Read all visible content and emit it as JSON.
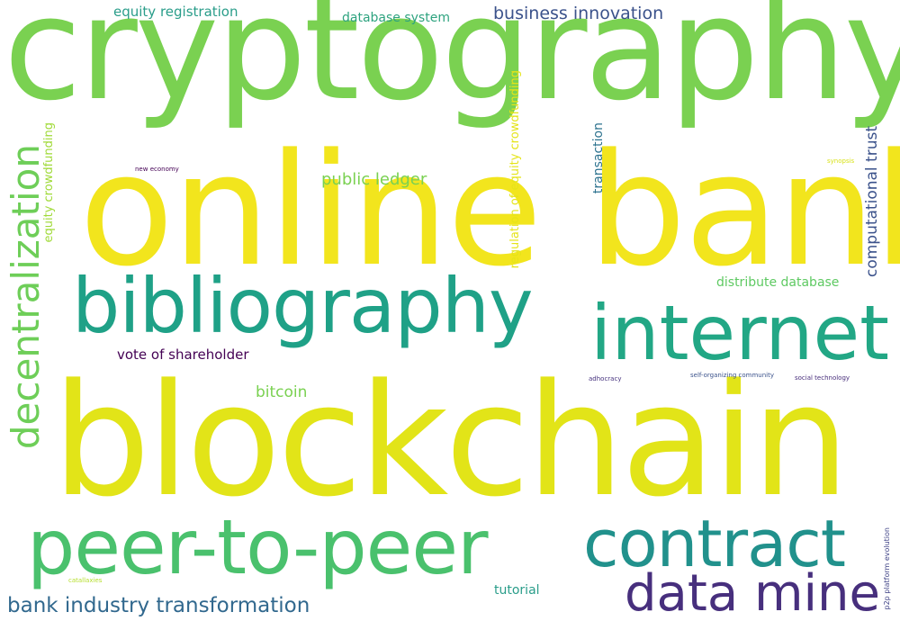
{
  "words": [
    {
      "text": "cryptography",
      "color": "#7ad151"
    },
    {
      "text": "online bank",
      "color": "#f2e51d"
    },
    {
      "text": "blockchain",
      "color": "#e2e418"
    },
    {
      "text": "bibliography",
      "color": "#1fa187"
    },
    {
      "text": "internet",
      "color": "#22a785"
    },
    {
      "text": "peer-to-peer",
      "color": "#4ac16d"
    },
    {
      "text": "contract",
      "color": "#21918c"
    },
    {
      "text": "data mine",
      "color": "#472f7d"
    },
    {
      "text": "decentralization",
      "color": "#6ece58"
    },
    {
      "text": "bank industry transformation",
      "color": "#31688e"
    },
    {
      "text": "business innovation",
      "color": "#3b528b"
    },
    {
      "text": "equity registration",
      "color": "#2a9d8a"
    },
    {
      "text": "database system",
      "color": "#2ea37f"
    },
    {
      "text": "public ledger",
      "color": "#7ad151"
    },
    {
      "text": "vote of shareholder",
      "color": "#440154"
    },
    {
      "text": "bitcoin",
      "color": "#7ad151"
    },
    {
      "text": "distribute database",
      "color": "#5ec962"
    },
    {
      "text": "tutorial",
      "color": "#2a9d8a"
    },
    {
      "text": "computational trust",
      "color": "#3b528b"
    },
    {
      "text": "transaction",
      "color": "#2c728e"
    },
    {
      "text": "equity crowdfunding",
      "color": "#a0da39"
    },
    {
      "text": "regulation of equity crowdfunding",
      "color": "#e5e419"
    },
    {
      "text": "new economy",
      "color": "#440154"
    },
    {
      "text": "synopsis",
      "color": "#d8e219"
    },
    {
      "text": "adhocracy",
      "color": "#46327e"
    },
    {
      "text": "self-organizing community",
      "color": "#3b528b"
    },
    {
      "text": "social technology",
      "color": "#472d7b"
    },
    {
      "text": "catallaxies",
      "color": "#b5de2b"
    },
    {
      "text": "p2p platform evolution",
      "color": "#414487"
    }
  ]
}
